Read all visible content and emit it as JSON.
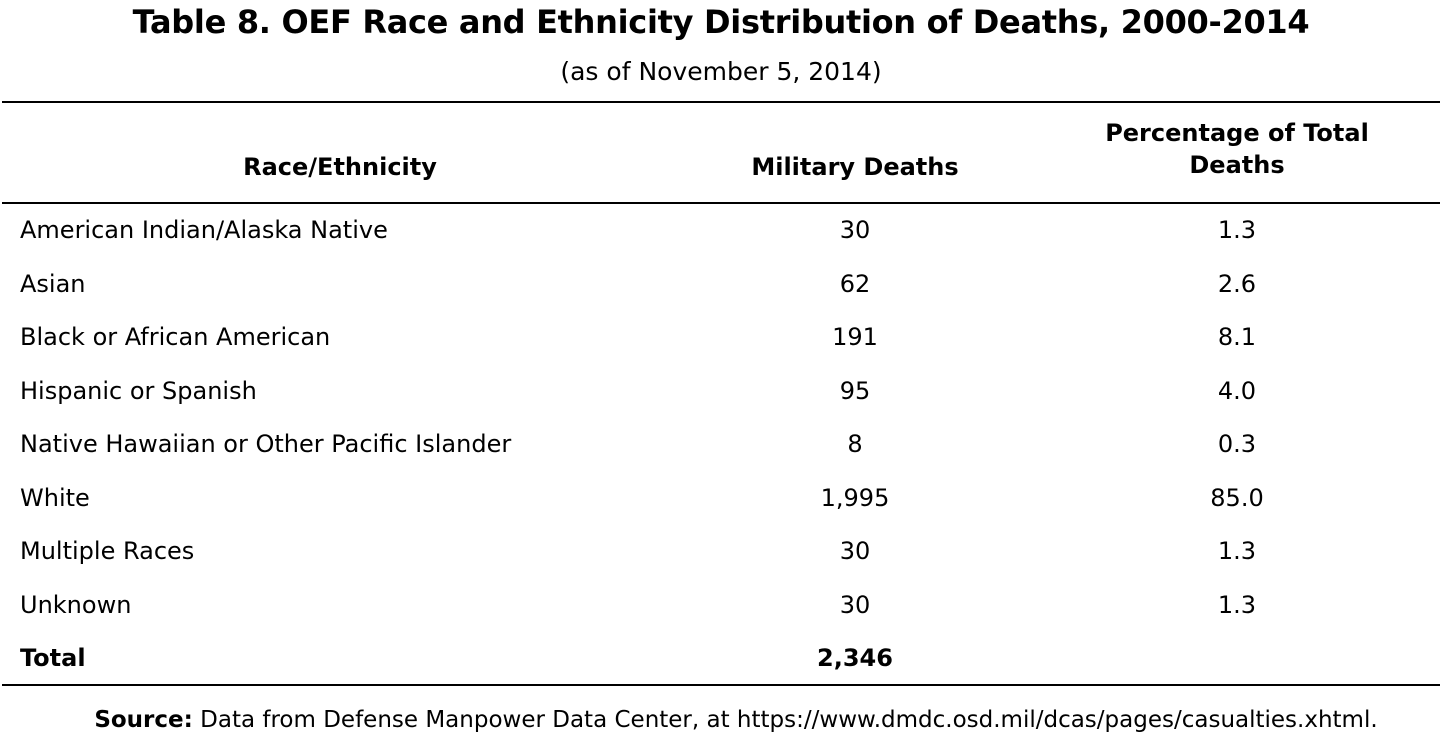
{
  "title": "Table 8. OEF Race and Ethnicity Distribution of Deaths, 2000-2014",
  "subtitle": "(as of November 5, 2014)",
  "columns": {
    "race": "Race/Ethnicity",
    "deaths": "Military Deaths",
    "percentage": "Percentage of Total Deaths"
  },
  "rows": [
    {
      "race": "American Indian/Alaska Native",
      "deaths": "30",
      "percentage": "1.3"
    },
    {
      "race": "Asian",
      "deaths": "62",
      "percentage": "2.6"
    },
    {
      "race": "Black or African American",
      "deaths": "191",
      "percentage": "8.1"
    },
    {
      "race": "Hispanic or Spanish",
      "deaths": "95",
      "percentage": "4.0"
    },
    {
      "race": "Native Hawaiian or Other Pacific Islander",
      "deaths": "8",
      "percentage": "0.3"
    },
    {
      "race": "White",
      "deaths": "1,995",
      "percentage": "85.0"
    },
    {
      "race": "Multiple Races",
      "deaths": "30",
      "percentage": "1.3"
    },
    {
      "race": "Unknown",
      "deaths": "30",
      "percentage": "1.3"
    }
  ],
  "total": {
    "label": "Total",
    "deaths": "2,346"
  },
  "source": {
    "label": "Source:",
    "text": "Data from Defense Manpower Data Center, at https://www.dmdc.osd.mil/dcas/pages/casualties.xhtml."
  }
}
